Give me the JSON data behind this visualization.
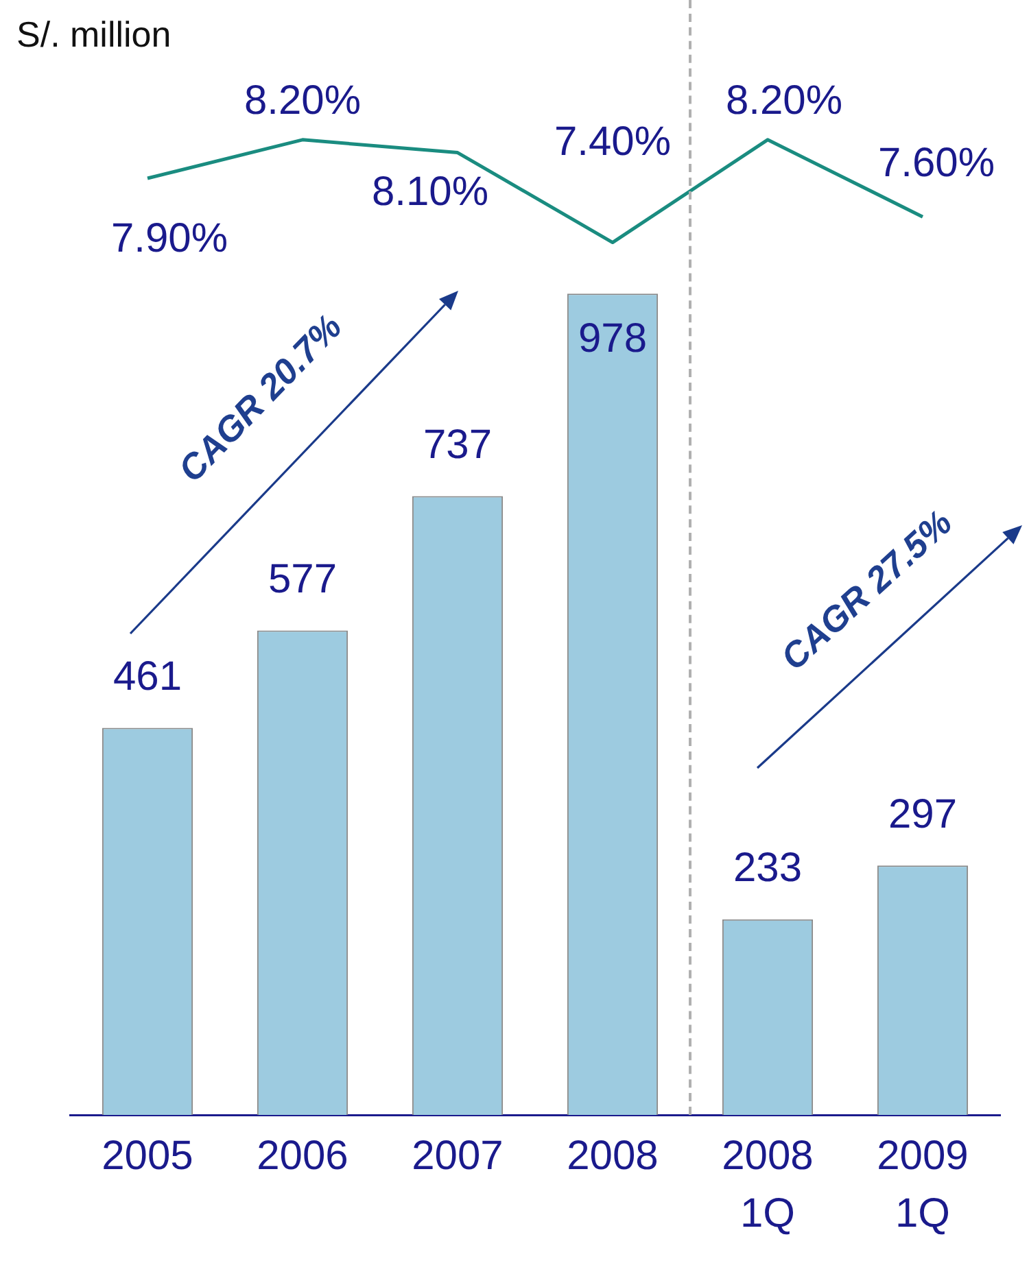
{
  "chart_data": [
    {
      "type": "line",
      "categories": [
        null,
        null,
        null,
        null,
        null,
        null
      ],
      "series": [
        {
          "color": "#1a8c80",
          "values": [
            7.9,
            8.2,
            8.1,
            7.4,
            8.2,
            7.6
          ],
          "value_labels": [
            "7.90%",
            "8.20%",
            "8.10%",
            "7.40%",
            "8.20%",
            "7.60%"
          ]
        }
      ],
      "tick_labels": false,
      "grid": false,
      "legend": false,
      "marker": "none",
      "line_style": "solid"
    },
    {
      "type": "bar",
      "categories": [
        "2005",
        "2006",
        "2007",
        "2008",
        "2008 1Q",
        "2009 1Q"
      ],
      "series": [
        {
          "color": "#9dcbe0",
          "values": [
            461,
            577,
            737,
            978,
            233,
            297
          ],
          "value_labels": [
            "461",
            "577",
            "737",
            "978",
            "233",
            "297"
          ]
        }
      ],
      "tick_labels": "x",
      "grid": false,
      "legend": false,
      "annotations": [
        "S/. million",
        "CAGR 20.7%",
        "CAGR 27.5%"
      ]
    }
  ]
}
